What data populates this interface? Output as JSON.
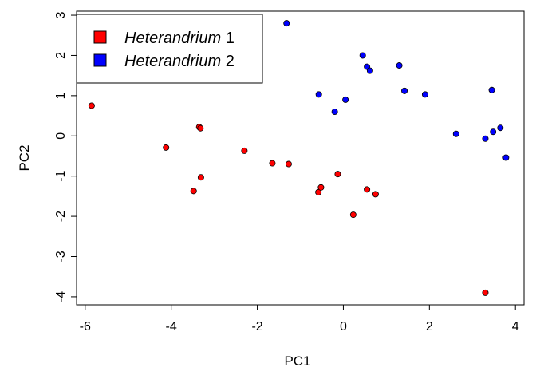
{
  "chart_data": {
    "type": "scatter",
    "xlabel": "PC1",
    "ylabel": "PC2",
    "xlim": [
      -6.2,
      4.2
    ],
    "ylim": [
      -4.2,
      3.1
    ],
    "x_ticks": [
      -6,
      -4,
      -2,
      0,
      2,
      4
    ],
    "y_ticks": [
      -4,
      -3,
      -2,
      -1,
      0,
      1,
      2,
      3
    ],
    "x_tick_labels": [
      "-6",
      "-4",
      "-2",
      "0",
      "2",
      "4"
    ],
    "y_tick_labels": [
      "-4",
      "-3",
      "-2",
      "-1",
      "0",
      "1",
      "2",
      "3"
    ],
    "legend_position": "top-left",
    "grid": false,
    "series": [
      {
        "name": "Heterandrium 1",
        "name_italic": "Heterandrium",
        "name_suffix": " 1",
        "color": "#ff0000",
        "x": [
          -5.85,
          -4.12,
          -3.35,
          -3.32,
          -3.31,
          -3.48,
          -2.3,
          -1.65,
          -1.27,
          -0.58,
          -0.52,
          -0.13,
          0.23,
          0.55,
          0.75,
          3.3
        ],
        "y": [
          0.75,
          -0.29,
          0.22,
          0.19,
          -1.03,
          -1.37,
          -0.37,
          -0.68,
          -0.7,
          -1.4,
          -1.28,
          -0.95,
          -1.96,
          -1.33,
          -1.45,
          -3.9
        ]
      },
      {
        "name": "Heterandrium 2",
        "name_italic": "Heterandrium",
        "name_suffix": " 2",
        "color": "#0000ff",
        "x": [
          -1.32,
          -0.57,
          -0.2,
          0.05,
          0.45,
          0.55,
          0.62,
          1.3,
          1.42,
          1.9,
          2.62,
          3.3,
          3.45,
          3.48,
          3.65,
          3.78
        ],
        "y": [
          2.8,
          1.03,
          0.6,
          0.9,
          2.0,
          1.72,
          1.62,
          1.75,
          1.12,
          1.03,
          0.05,
          -0.07,
          1.14,
          0.1,
          0.2,
          -0.54
        ]
      }
    ]
  }
}
